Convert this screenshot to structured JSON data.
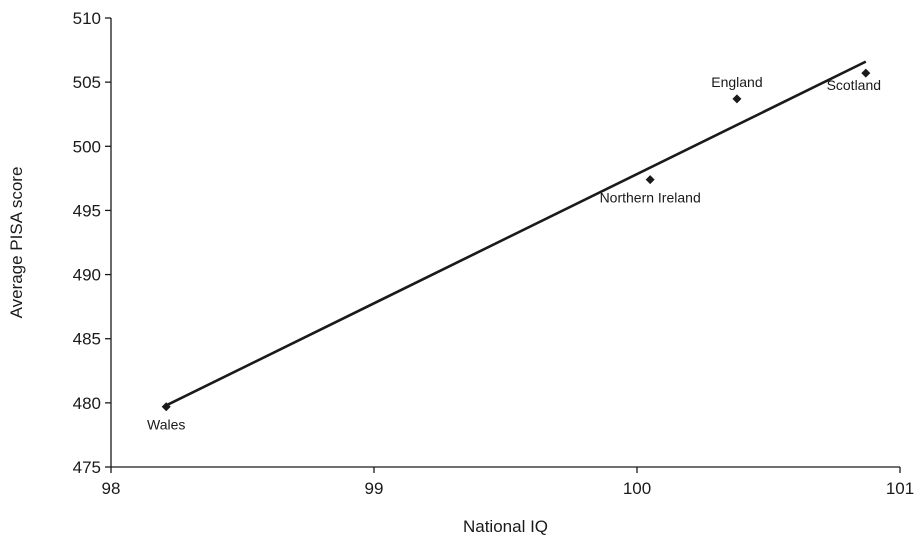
{
  "chart_data": {
    "type": "scatter",
    "title": "",
    "xlabel": "National IQ",
    "ylabel": "Average PISA score",
    "xlim": [
      98,
      101
    ],
    "ylim": [
      475,
      510
    ],
    "xticks": [
      98,
      99,
      100,
      101
    ],
    "yticks": [
      475,
      480,
      485,
      490,
      495,
      500,
      505,
      510
    ],
    "grid": false,
    "legend": "none",
    "points": [
      {
        "label": "Wales",
        "x": 98.21,
        "y": 479.7,
        "label_position": "below"
      },
      {
        "label": "Northern Ireland",
        "x": 100.05,
        "y": 497.4,
        "label_position": "below"
      },
      {
        "label": "England",
        "x": 100.38,
        "y": 503.7,
        "label_position": "above"
      },
      {
        "label": "Scotland",
        "x": 100.87,
        "y": 505.7,
        "label_position": "below-left"
      }
    ],
    "trendline": {
      "x": [
        98.2,
        100.87
      ],
      "y": [
        479.7,
        506.6
      ]
    },
    "colors": {
      "marker": "#1a1a1a",
      "line": "#1a1a1a"
    }
  }
}
